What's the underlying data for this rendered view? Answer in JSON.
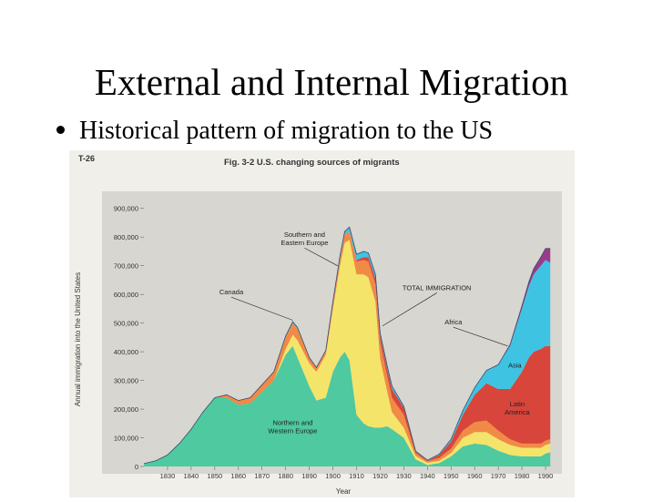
{
  "slide": {
    "title": "External and Internal Migration",
    "bullet": "Historical pattern of migration to the US"
  },
  "chart_data": {
    "type": "area",
    "code": "T-26",
    "title": "Fig. 3-2  U.S. changing sources of migrants",
    "xlabel": "Year",
    "ylabel": "Annual immigration into the United States",
    "xlim": [
      1820,
      1995
    ],
    "ylim": [
      0,
      950000
    ],
    "x_ticks": [
      1830,
      1840,
      1850,
      1860,
      1870,
      1880,
      1890,
      1900,
      1910,
      1920,
      1930,
      1940,
      1950,
      1960,
      1970,
      1980,
      1990
    ],
    "y_ticks": [
      0,
      100000,
      200000,
      300000,
      400000,
      500000,
      600000,
      700000,
      800000,
      900000
    ],
    "y_tick_labels": [
      "0",
      "100,000",
      "200,000",
      "300,000",
      "400,000",
      "500,000",
      "600,000",
      "700,000",
      "800,000",
      "900,000"
    ],
    "x": [
      1820,
      1825,
      1830,
      1835,
      1840,
      1845,
      1850,
      1855,
      1860,
      1865,
      1870,
      1875,
      1880,
      1883,
      1885,
      1890,
      1893,
      1897,
      1900,
      1903,
      1905,
      1907,
      1910,
      1913,
      1915,
      1918,
      1920,
      1923,
      1925,
      1930,
      1935,
      1940,
      1945,
      1950,
      1955,
      1960,
      1965,
      1970,
      1975,
      1980,
      1983,
      1985,
      1988,
      1990,
      1992
    ],
    "series": [
      {
        "name": "Northern and Western Europe",
        "color": "#4ec9a0",
        "values": [
          10000,
          20000,
          40000,
          80000,
          130000,
          190000,
          240000,
          240000,
          215000,
          220000,
          260000,
          300000,
          390000,
          420000,
          380000,
          280000,
          230000,
          240000,
          330000,
          380000,
          400000,
          370000,
          180000,
          150000,
          140000,
          135000,
          135000,
          140000,
          130000,
          100000,
          25000,
          5000,
          12000,
          35000,
          70000,
          80000,
          75000,
          55000,
          40000,
          35000,
          35000,
          35000,
          35000,
          45000,
          50000
        ]
      },
      {
        "name": "Southern and Eastern Europe",
        "color": "#f5e46a",
        "values": [
          0,
          0,
          0,
          0,
          0,
          0,
          0,
          0,
          0,
          0,
          0,
          0,
          20000,
          40000,
          60000,
          80000,
          100000,
          150000,
          220000,
          320000,
          380000,
          420000,
          490000,
          520000,
          520000,
          440000,
          240000,
          120000,
          60000,
          35000,
          12000,
          8000,
          8000,
          12000,
          30000,
          40000,
          45000,
          40000,
          35000,
          30000,
          30000,
          30000,
          30000,
          30000,
          30000
        ]
      },
      {
        "name": "Canada",
        "color": "#f08a45",
        "values": [
          0,
          0,
          0,
          0,
          0,
          0,
          0,
          10000,
          15000,
          20000,
          25000,
          30000,
          40000,
          40000,
          40000,
          20000,
          15000,
          15000,
          20000,
          25000,
          30000,
          30000,
          45000,
          50000,
          55000,
          60000,
          60000,
          55000,
          50000,
          45000,
          10000,
          5000,
          10000,
          15000,
          25000,
          35000,
          40000,
          30000,
          20000,
          15000,
          15000,
          15000,
          15000,
          15000,
          15000
        ]
      },
      {
        "name": "Latin America",
        "color": "#d8453a",
        "values": [
          0,
          0,
          0,
          0,
          0,
          0,
          0,
          0,
          0,
          0,
          0,
          0,
          0,
          0,
          0,
          0,
          0,
          0,
          0,
          0,
          0,
          0,
          5000,
          10000,
          15000,
          20000,
          20000,
          25000,
          30000,
          25000,
          5000,
          2000,
          10000,
          25000,
          55000,
          95000,
          130000,
          145000,
          175000,
          250000,
          300000,
          320000,
          330000,
          330000,
          325000
        ]
      },
      {
        "name": "Asia",
        "color": "#3fc3e3",
        "values": [
          0,
          0,
          0,
          0,
          0,
          0,
          0,
          0,
          0,
          0,
          0,
          0,
          5000,
          5000,
          5000,
          0,
          0,
          0,
          5000,
          10000,
          10000,
          15000,
          20000,
          20000,
          15000,
          15000,
          10000,
          10000,
          10000,
          5000,
          2000,
          2000,
          3000,
          8000,
          15000,
          25000,
          45000,
          85000,
          150000,
          220000,
          250000,
          270000,
          290000,
          300000,
          290000
        ]
      },
      {
        "name": "Africa",
        "color": "#9b3a8a",
        "values": [
          0,
          0,
          0,
          0,
          0,
          0,
          0,
          0,
          0,
          0,
          0,
          0,
          0,
          0,
          0,
          0,
          0,
          0,
          0,
          0,
          0,
          0,
          0,
          0,
          0,
          0,
          0,
          0,
          0,
          0,
          0,
          0,
          0,
          0,
          0,
          0,
          0,
          0,
          5000,
          10000,
          15000,
          20000,
          30000,
          40000,
          50000
        ]
      }
    ],
    "annotations": [
      {
        "text": "Southern and Eastern Europe",
        "lines": [
          "Southern and",
          "Eastern Europe"
        ],
        "x": 1888,
        "y": 800000,
        "arrow_to": [
          1902,
          700000
        ]
      },
      {
        "text": "Canada",
        "lines": [
          "Canada"
        ],
        "x": 1857,
        "y": 600000,
        "arrow_to": [
          1883,
          510000
        ]
      },
      {
        "text": "TOTAL IMMIGRATION",
        "lines": [
          "TOTAL IMMIGRATION"
        ],
        "x": 1944,
        "y": 615000,
        "arrow_to": [
          1921,
          490000
        ]
      },
      {
        "text": "Africa",
        "lines": [
          "Africa"
        ],
        "x": 1951,
        "y": 495000,
        "arrow_to": [
          1974,
          420000
        ]
      },
      {
        "text": "Asia",
        "lines": [
          "Asia"
        ],
        "x": 1977,
        "y": 345000,
        "arrow_to": null
      },
      {
        "text": "Latin America",
        "lines": [
          "Latin",
          "America"
        ],
        "x": 1978,
        "y": 210000,
        "arrow_to": null
      },
      {
        "text": "Northern and Western Europe",
        "lines": [
          "Northern and",
          "Western Europe"
        ],
        "x": 1883,
        "y": 145000,
        "arrow_to": null
      }
    ]
  }
}
